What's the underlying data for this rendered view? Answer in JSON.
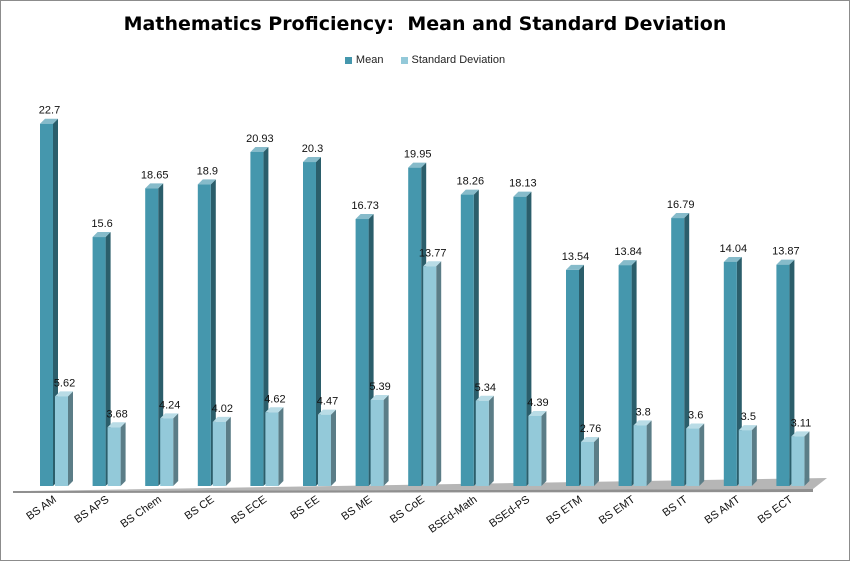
{
  "chart_data": {
    "type": "bar",
    "title": "Mathematics Proficiency:  Mean and Standard Deviation",
    "xlabel": "",
    "ylabel": "",
    "ylim": [
      0,
      24
    ],
    "grid": false,
    "legend_position": "top-center",
    "categories": [
      "BS AM",
      "BS APS",
      "BS Chem",
      "BS CE",
      "BS ECE",
      "BS EE",
      "BS ME",
      "BS CoE",
      "BSEd-Math",
      "BSEd-PS",
      "BS ETM",
      "BS EMT",
      "BS IT",
      "BS AMT",
      "BS ECT"
    ],
    "series": [
      {
        "name": "Mean",
        "color": "#4597ad",
        "values": [
          22.7,
          15.6,
          18.65,
          18.9,
          20.93,
          20.3,
          16.73,
          19.95,
          18.26,
          18.13,
          13.54,
          13.84,
          16.79,
          14.04,
          13.87
        ],
        "labels": [
          "22.7",
          "15.6",
          "18.65",
          "18.9",
          "20.93",
          "20.3",
          "16.73",
          "19.95",
          "18.26",
          "18.13",
          "13.54",
          "13.84",
          "16.79",
          "14.04",
          "13.87"
        ]
      },
      {
        "name": "Standard Deviation",
        "color": "#93c9d9",
        "values": [
          5.62,
          3.68,
          4.24,
          4.02,
          4.62,
          4.47,
          5.39,
          13.77,
          5.34,
          4.39,
          2.76,
          3.8,
          3.6,
          3.5,
          3.11
        ],
        "labels": [
          "5.62",
          "3.68",
          "4.24",
          "4.02",
          "4.62",
          "4.47",
          "5.39",
          "13.77",
          "5.34",
          "4.39",
          "2.76",
          "3.8",
          "3.6",
          "3.5",
          "3.11"
        ]
      }
    ]
  }
}
